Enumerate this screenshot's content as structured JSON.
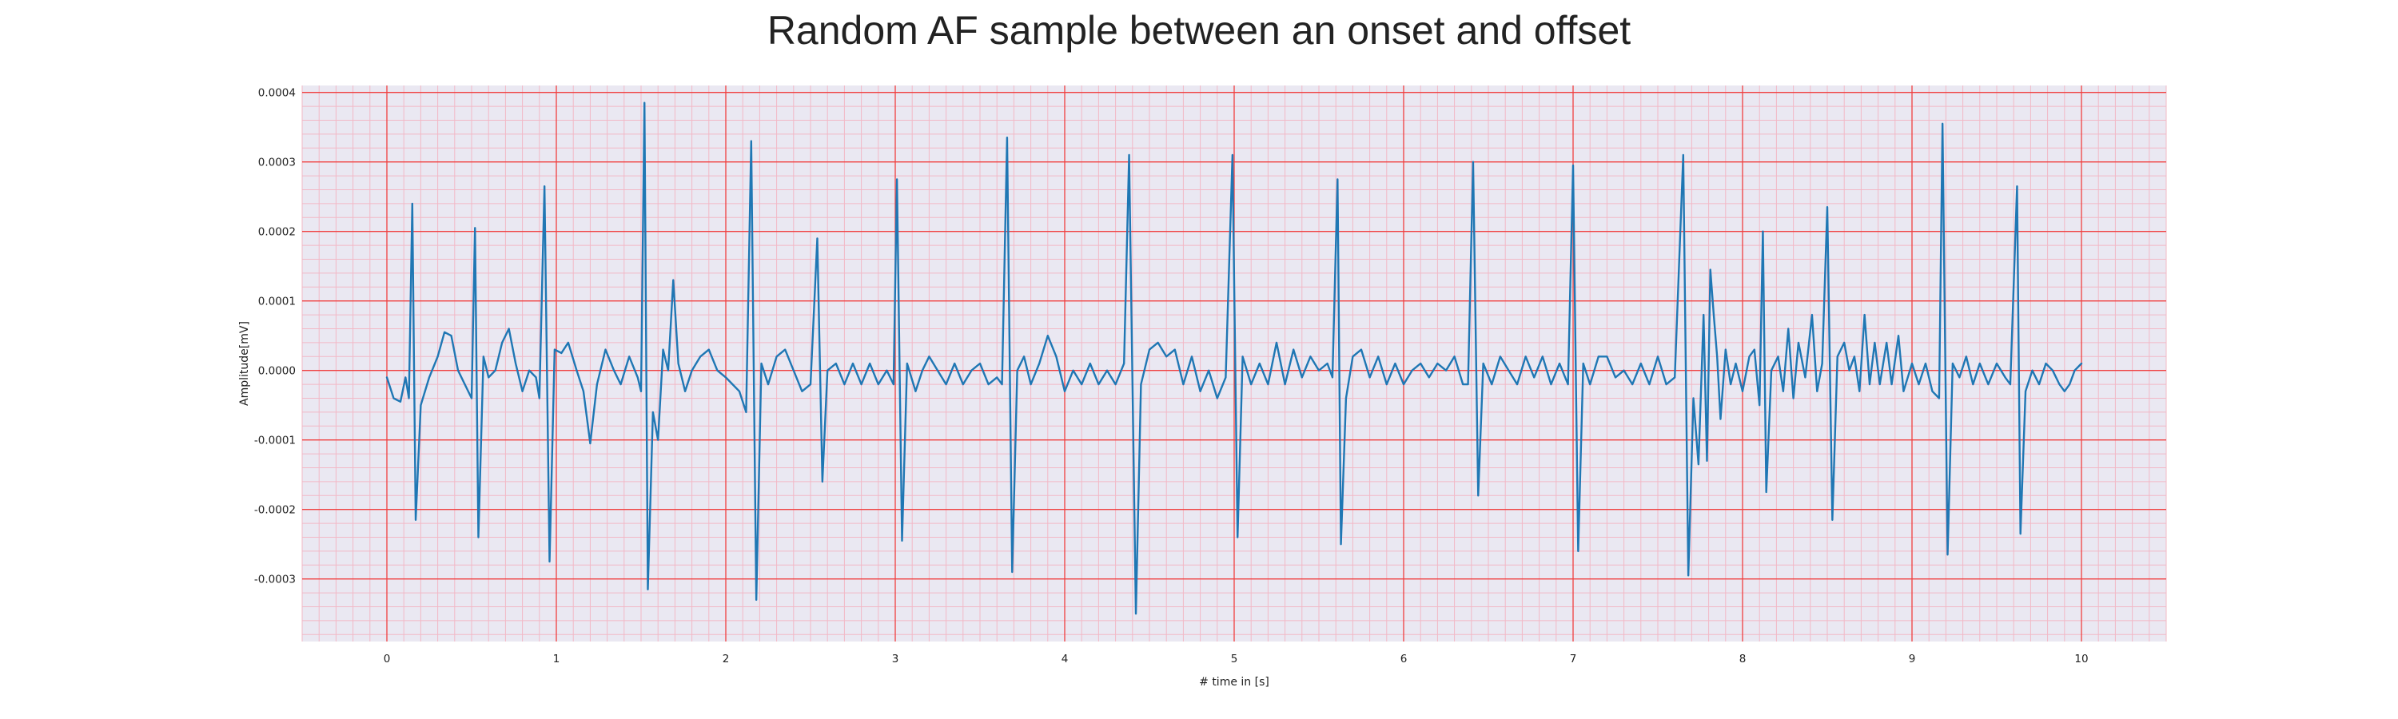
{
  "chart_data": {
    "type": "line",
    "title": "Random AF sample between an onset and offset",
    "xlabel": "# time in [s]",
    "ylabel": "Amplitude[mV]",
    "xlim": [
      -0.5,
      10.5
    ],
    "ylim": [
      -0.00039,
      0.00041
    ],
    "x_ticks": [
      0,
      1,
      2,
      3,
      4,
      5,
      6,
      7,
      8,
      9,
      10
    ],
    "x_tick_labels": [
      "0",
      "1",
      "2",
      "3",
      "4",
      "5",
      "6",
      "7",
      "8",
      "9",
      "10"
    ],
    "y_ticks": [
      -0.0003,
      -0.0002,
      -0.0001,
      0.0,
      0.0001,
      0.0002,
      0.0003,
      0.0004
    ],
    "y_tick_labels": [
      "-0.0003",
      "-0.0002",
      "-0.0001",
      "0.0000",
      "0.0001",
      "0.0002",
      "0.0003",
      "0.0004"
    ],
    "grid": "major and minor (ECG paper style)",
    "colors": {
      "line": "#1f77b4",
      "background": "#eae8f2",
      "major_grid": "#f04040",
      "minor_grid": "#f2b8c6"
    },
    "series": [
      {
        "name": "",
        "points": [
          [
            0.0,
            -1e-05
          ],
          [
            0.04,
            -4e-05
          ],
          [
            0.08,
            -4.5e-05
          ],
          [
            0.11,
            -1e-05
          ],
          [
            0.13,
            -4e-05
          ],
          [
            0.15,
            0.00024
          ],
          [
            0.17,
            -0.000215
          ],
          [
            0.2,
            -5e-05
          ],
          [
            0.25,
            -1e-05
          ],
          [
            0.3,
            2e-05
          ],
          [
            0.34,
            5.5e-05
          ],
          [
            0.38,
            5e-05
          ],
          [
            0.42,
            0.0
          ],
          [
            0.46,
            -2e-05
          ],
          [
            0.5,
            -4e-05
          ],
          [
            0.52,
            0.000205
          ],
          [
            0.54,
            -0.00024
          ],
          [
            0.57,
            2e-05
          ],
          [
            0.6,
            -1e-05
          ],
          [
            0.64,
            0.0
          ],
          [
            0.68,
            4e-05
          ],
          [
            0.72,
            6e-05
          ],
          [
            0.76,
            1e-05
          ],
          [
            0.8,
            -3e-05
          ],
          [
            0.84,
            0.0
          ],
          [
            0.88,
            -1e-05
          ],
          [
            0.9,
            -4e-05
          ],
          [
            0.93,
            0.000265
          ],
          [
            0.96,
            -0.000275
          ],
          [
            0.99,
            3e-05
          ],
          [
            1.03,
            2.5e-05
          ],
          [
            1.07,
            4e-05
          ],
          [
            1.12,
            0.0
          ],
          [
            1.16,
            -3e-05
          ],
          [
            1.2,
            -0.000105
          ],
          [
            1.24,
            -2e-05
          ],
          [
            1.29,
            3e-05
          ],
          [
            1.34,
            0.0
          ],
          [
            1.38,
            -2e-05
          ],
          [
            1.43,
            2e-05
          ],
          [
            1.48,
            -1e-05
          ],
          [
            1.5,
            -3e-05
          ],
          [
            1.52,
            0.000385
          ],
          [
            1.54,
            -0.000315
          ],
          [
            1.57,
            -6e-05
          ],
          [
            1.6,
            -0.0001
          ],
          [
            1.63,
            3e-05
          ],
          [
            1.66,
            0.0
          ],
          [
            1.69,
            0.00013
          ],
          [
            1.72,
            1e-05
          ],
          [
            1.76,
            -3e-05
          ],
          [
            1.8,
            0.0
          ],
          [
            1.85,
            2e-05
          ],
          [
            1.9,
            3e-05
          ],
          [
            1.95,
            0.0
          ],
          [
            2.0,
            -1e-05
          ],
          [
            2.04,
            -2e-05
          ],
          [
            2.08,
            -3e-05
          ],
          [
            2.12,
            -6e-05
          ],
          [
            2.15,
            0.00033
          ],
          [
            2.18,
            -0.00033
          ],
          [
            2.21,
            1e-05
          ],
          [
            2.25,
            -2e-05
          ],
          [
            2.3,
            2e-05
          ],
          [
            2.35,
            3e-05
          ],
          [
            2.4,
            0.0
          ],
          [
            2.45,
            -3e-05
          ],
          [
            2.5,
            -2e-05
          ],
          [
            2.54,
            0.00019
          ],
          [
            2.57,
            -0.00016
          ],
          [
            2.6,
            0.0
          ],
          [
            2.65,
            1e-05
          ],
          [
            2.7,
            -2e-05
          ],
          [
            2.75,
            1e-05
          ],
          [
            2.8,
            -2e-05
          ],
          [
            2.85,
            1e-05
          ],
          [
            2.9,
            -2e-05
          ],
          [
            2.95,
            0.0
          ],
          [
            2.99,
            -2e-05
          ],
          [
            3.01,
            0.000275
          ],
          [
            3.04,
            -0.000245
          ],
          [
            3.07,
            1e-05
          ],
          [
            3.12,
            -3e-05
          ],
          [
            3.16,
            0.0
          ],
          [
            3.2,
            2e-05
          ],
          [
            3.25,
            0.0
          ],
          [
            3.3,
            -2e-05
          ],
          [
            3.35,
            1e-05
          ],
          [
            3.4,
            -2e-05
          ],
          [
            3.45,
            0.0
          ],
          [
            3.5,
            1e-05
          ],
          [
            3.55,
            -2e-05
          ],
          [
            3.6,
            -1e-05
          ],
          [
            3.63,
            -2e-05
          ],
          [
            3.66,
            0.000335
          ],
          [
            3.69,
            -0.00029
          ],
          [
            3.72,
            0.0
          ],
          [
            3.76,
            2e-05
          ],
          [
            3.8,
            -2e-05
          ],
          [
            3.85,
            1e-05
          ],
          [
            3.9,
            5e-05
          ],
          [
            3.95,
            2e-05
          ],
          [
            4.0,
            -3e-05
          ],
          [
            4.05,
            0.0
          ],
          [
            4.1,
            -2e-05
          ],
          [
            4.15,
            1e-05
          ],
          [
            4.2,
            -2e-05
          ],
          [
            4.25,
            0.0
          ],
          [
            4.3,
            -2e-05
          ],
          [
            4.35,
            1e-05
          ],
          [
            4.38,
            0.00031
          ],
          [
            4.42,
            -0.00035
          ],
          [
            4.45,
            -2e-05
          ],
          [
            4.5,
            3e-05
          ],
          [
            4.55,
            4e-05
          ],
          [
            4.6,
            2e-05
          ],
          [
            4.65,
            3e-05
          ],
          [
            4.7,
            -2e-05
          ],
          [
            4.75,
            2e-05
          ],
          [
            4.8,
            -3e-05
          ],
          [
            4.85,
            0.0
          ],
          [
            4.9,
            -4e-05
          ],
          [
            4.95,
            -1e-05
          ],
          [
            4.99,
            0.00031
          ],
          [
            5.02,
            -0.00024
          ],
          [
            5.05,
            2e-05
          ],
          [
            5.1,
            -2e-05
          ],
          [
            5.15,
            1e-05
          ],
          [
            5.2,
            -2e-05
          ],
          [
            5.25,
            4e-05
          ],
          [
            5.3,
            -2e-05
          ],
          [
            5.35,
            3e-05
          ],
          [
            5.4,
            -1e-05
          ],
          [
            5.45,
            2e-05
          ],
          [
            5.5,
            0.0
          ],
          [
            5.55,
            1e-05
          ],
          [
            5.58,
            -1e-05
          ],
          [
            5.61,
            0.000275
          ],
          [
            5.63,
            -0.00025
          ],
          [
            5.66,
            -4e-05
          ],
          [
            5.7,
            2e-05
          ],
          [
            5.75,
            3e-05
          ],
          [
            5.8,
            -1e-05
          ],
          [
            5.85,
            2e-05
          ],
          [
            5.9,
            -2e-05
          ],
          [
            5.95,
            1e-05
          ],
          [
            6.0,
            -2e-05
          ],
          [
            6.05,
            0.0
          ],
          [
            6.1,
            1e-05
          ],
          [
            6.15,
            -1e-05
          ],
          [
            6.2,
            1e-05
          ],
          [
            6.25,
            0.0
          ],
          [
            6.3,
            2e-05
          ],
          [
            6.35,
            -2e-05
          ],
          [
            6.38,
            -2e-05
          ],
          [
            6.41,
            0.0003
          ],
          [
            6.44,
            -0.00018
          ],
          [
            6.47,
            1e-05
          ],
          [
            6.52,
            -2e-05
          ],
          [
            6.57,
            2e-05
          ],
          [
            6.62,
            0.0
          ],
          [
            6.67,
            -2e-05
          ],
          [
            6.72,
            2e-05
          ],
          [
            6.77,
            -1e-05
          ],
          [
            6.82,
            2e-05
          ],
          [
            6.87,
            -2e-05
          ],
          [
            6.92,
            1e-05
          ],
          [
            6.97,
            -2e-05
          ],
          [
            7.0,
            0.000295
          ],
          [
            7.03,
            -0.00026
          ],
          [
            7.06,
            1e-05
          ],
          [
            7.1,
            -2e-05
          ],
          [
            7.15,
            2e-05
          ],
          [
            7.2,
            2e-05
          ],
          [
            7.25,
            -1e-05
          ],
          [
            7.3,
            0.0
          ],
          [
            7.35,
            -2e-05
          ],
          [
            7.4,
            1e-05
          ],
          [
            7.45,
            -2e-05
          ],
          [
            7.5,
            2e-05
          ],
          [
            7.55,
            -2e-05
          ],
          [
            7.6,
            -1e-05
          ],
          [
            7.65,
            0.00031
          ],
          [
            7.68,
            -0.000295
          ],
          [
            7.71,
            -4e-05
          ],
          [
            7.74,
            -0.000135
          ],
          [
            7.77,
            8e-05
          ],
          [
            7.79,
            -0.00013
          ],
          [
            7.81,
            0.000145
          ],
          [
            7.83,
            8e-05
          ],
          [
            7.85,
            2e-05
          ],
          [
            7.87,
            -7e-05
          ],
          [
            7.9,
            3e-05
          ],
          [
            7.93,
            -2e-05
          ],
          [
            7.96,
            1e-05
          ],
          [
            8.0,
            -3e-05
          ],
          [
            8.04,
            2e-05
          ],
          [
            8.07,
            3e-05
          ],
          [
            8.1,
            -5e-05
          ],
          [
            8.12,
            0.0002
          ],
          [
            8.14,
            -0.000175
          ],
          [
            8.17,
            0.0
          ],
          [
            8.21,
            2e-05
          ],
          [
            8.24,
            -3e-05
          ],
          [
            8.27,
            6e-05
          ],
          [
            8.3,
            -4e-05
          ],
          [
            8.33,
            4e-05
          ],
          [
            8.37,
            -1e-05
          ],
          [
            8.41,
            8e-05
          ],
          [
            8.44,
            -3e-05
          ],
          [
            8.47,
            1e-05
          ],
          [
            8.5,
            0.000235
          ],
          [
            8.53,
            -0.000215
          ],
          [
            8.56,
            2e-05
          ],
          [
            8.6,
            4e-05
          ],
          [
            8.63,
            0.0
          ],
          [
            8.66,
            2e-05
          ],
          [
            8.69,
            -3e-05
          ],
          [
            8.72,
            8e-05
          ],
          [
            8.75,
            -2e-05
          ],
          [
            8.78,
            4e-05
          ],
          [
            8.81,
            -2e-05
          ],
          [
            8.85,
            4e-05
          ],
          [
            8.88,
            -2e-05
          ],
          [
            8.92,
            5e-05
          ],
          [
            8.95,
            -3e-05
          ],
          [
            9.0,
            1e-05
          ],
          [
            9.04,
            -2e-05
          ],
          [
            9.08,
            1e-05
          ],
          [
            9.12,
            -3e-05
          ],
          [
            9.16,
            -4e-05
          ],
          [
            9.18,
            0.000355
          ],
          [
            9.21,
            -0.000265
          ],
          [
            9.24,
            1e-05
          ],
          [
            9.28,
            -1e-05
          ],
          [
            9.32,
            2e-05
          ],
          [
            9.36,
            -2e-05
          ],
          [
            9.4,
            1e-05
          ],
          [
            9.45,
            -2e-05
          ],
          [
            9.5,
            1e-05
          ],
          [
            9.55,
            -1e-05
          ],
          [
            9.58,
            -2e-05
          ],
          [
            9.62,
            0.000265
          ],
          [
            9.64,
            -0.000235
          ],
          [
            9.67,
            -3e-05
          ],
          [
            9.71,
            0.0
          ],
          [
            9.75,
            -2e-05
          ],
          [
            9.79,
            1e-05
          ],
          [
            9.83,
            0.0
          ],
          [
            9.87,
            -2e-05
          ],
          [
            9.9,
            -3e-05
          ],
          [
            9.93,
            -2e-05
          ],
          [
            9.96,
            0.0
          ],
          [
            10.0,
            1e-05
          ]
        ]
      }
    ]
  }
}
